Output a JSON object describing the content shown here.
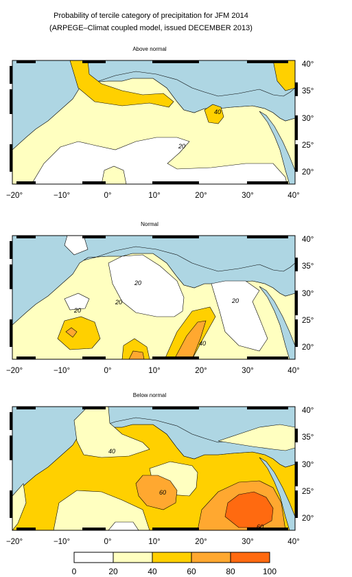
{
  "figure": {
    "title_line1": "Probability of tercile category of precipitation for JFM 2014",
    "title_line2": "(ARPEGE–Climat coupled model, issued DECEMBER 2013)"
  },
  "map_data": {
    "panels": [
      {
        "id": "above",
        "title": "Above normal",
        "contour_labels": [
          "20",
          "40"
        ]
      },
      {
        "id": "normal",
        "title": "Normal",
        "contour_labels": [
          "20",
          "20",
          "20",
          "20",
          "40"
        ]
      },
      {
        "id": "below",
        "title": "Below normal",
        "contour_labels": [
          "40",
          "60",
          "60"
        ]
      }
    ],
    "lon_ticks": [
      "−20°",
      "−10°",
      "0°",
      "10°",
      "20°",
      "30°",
      "40°"
    ],
    "lat_ticks": [
      "40°",
      "35°",
      "30°",
      "25°",
      "20°"
    ],
    "lon_range": [
      -20,
      40
    ],
    "lat_range": [
      17.5,
      40.5
    ],
    "colors": {
      "sea": "#aed6e3",
      "class_0_20": "#ffffff",
      "class_20_40": "#ffffc0",
      "class_40_60": "#ffd000",
      "class_60_80": "#ffa830",
      "class_80_100": "#ff6a10"
    },
    "colorbar": {
      "labels": [
        "0",
        "20",
        "40",
        "60",
        "80",
        "100"
      ],
      "colors": [
        "#ffffff",
        "#ffffc0",
        "#ffd000",
        "#ffa830",
        "#ff6a10"
      ]
    }
  }
}
